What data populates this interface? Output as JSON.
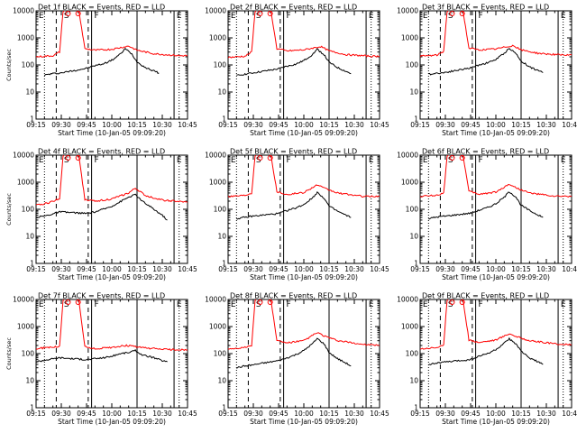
{
  "chart_data": [
    {
      "type": "line",
      "title": "Det 1f BLACK = Events, RED = LLD",
      "xlabel": "Start Time (10-Jan-05 09:09:20)",
      "ylabel": "Counts/sec",
      "yscale": "log",
      "ylim": [
        1,
        10000
      ],
      "xlim": [
        "09:15",
        "10:45"
      ],
      "x_ticks": [
        "09:15",
        "09:30",
        "09:45",
        "10:00",
        "10:15",
        "10:30",
        "10:45"
      ],
      "y_ticks": [
        "1",
        "10",
        "100",
        "1000",
        "10000"
      ],
      "markers": [
        "E",
        "S",
        "F",
        "E"
      ],
      "red_level": "high",
      "series": [
        {
          "name": "Events",
          "color": "#000000",
          "x": [
            "09:20",
            "09:25",
            "09:29",
            "09:45",
            "09:50",
            "09:55",
            "10:00",
            "10:05",
            "10:08",
            "10:12",
            "10:15",
            "10:20",
            "10:25",
            "10:28"
          ],
          "y": [
            42,
            48,
            50,
            75,
            95,
            110,
            150,
            250,
            400,
            250,
            130,
            80,
            60,
            50
          ]
        },
        {
          "name": "LLD",
          "color": "#ff0000",
          "x": [
            "09:15",
            "09:25",
            "09:29",
            "09:31",
            "09:34",
            "09:40",
            "09:44",
            "09:50",
            "10:00",
            "10:10",
            "10:15",
            "10:25",
            "10:40",
            "10:45"
          ],
          "y": [
            200,
            220,
            300,
            9000,
            15000,
            15000,
            400,
            350,
            380,
            500,
            350,
            260,
            220,
            220
          ]
        }
      ]
    },
    {
      "type": "line",
      "title": "Det 2f BLACK = Events, RED = LLD",
      "xlabel": "Start Time (10-Jan-05 09:09:20)",
      "ylabel": "",
      "yscale": "log",
      "ylim": [
        1,
        10000
      ],
      "xlim": [
        "09:15",
        "10:45"
      ],
      "x_ticks": [
        "09:15",
        "09:30",
        "09:45",
        "10:00",
        "10:15",
        "10:30",
        "10:45"
      ],
      "y_ticks": [
        "1",
        "10",
        "100",
        "1000",
        "10000"
      ],
      "markers": [
        "E",
        "S",
        "F",
        "E"
      ],
      "red_level": "high",
      "series": [
        {
          "name": "Events",
          "color": "#000000",
          "x": [
            "09:20",
            "09:25",
            "09:29",
            "09:45",
            "09:50",
            "09:55",
            "10:00",
            "10:05",
            "10:08",
            "10:12",
            "10:15",
            "10:20",
            "10:25",
            "10:28"
          ],
          "y": [
            40,
            46,
            50,
            72,
            90,
            105,
            145,
            240,
            380,
            240,
            125,
            80,
            58,
            48
          ]
        },
        {
          "name": "LLD",
          "color": "#ff0000",
          "x": [
            "09:15",
            "09:25",
            "09:29",
            "09:31",
            "09:34",
            "09:40",
            "09:44",
            "09:50",
            "10:00",
            "10:10",
            "10:15",
            "10:25",
            "10:40",
            "10:45"
          ],
          "y": [
            190,
            210,
            300,
            9000,
            15000,
            15000,
            400,
            330,
            360,
            480,
            330,
            240,
            210,
            210
          ]
        }
      ]
    },
    {
      "type": "line",
      "title": "Det 3f BLACK = Events, RED = LLD",
      "xlabel": "Start Time (10-Jan-05 09:09:20)",
      "ylabel": "",
      "yscale": "log",
      "ylim": [
        1,
        10000
      ],
      "xlim": [
        "09:15",
        "10:45"
      ],
      "x_ticks": [
        "09:15",
        "09:30",
        "09:45",
        "10:00",
        "10:15",
        "10:30",
        "10:45"
      ],
      "y_ticks": [
        "1",
        "10",
        "100",
        "1000",
        "10000"
      ],
      "markers": [
        "E",
        "S",
        "F",
        "E"
      ],
      "red_level": "high",
      "series": [
        {
          "name": "Events",
          "color": "#000000",
          "x": [
            "09:20",
            "09:25",
            "09:29",
            "09:45",
            "09:50",
            "09:55",
            "10:00",
            "10:05",
            "10:08",
            "10:12",
            "10:15",
            "10:20",
            "10:25",
            "10:28"
          ],
          "y": [
            45,
            50,
            52,
            78,
            100,
            120,
            160,
            270,
            420,
            260,
            140,
            85,
            62,
            52
          ]
        },
        {
          "name": "LLD",
          "color": "#ff0000",
          "x": [
            "09:15",
            "09:25",
            "09:29",
            "09:31",
            "09:34",
            "09:40",
            "09:44",
            "09:50",
            "10:00",
            "10:10",
            "10:15",
            "10:25",
            "10:40",
            "10:45"
          ],
          "y": [
            210,
            230,
            320,
            9000,
            15000,
            15000,
            420,
            360,
            390,
            520,
            360,
            270,
            230,
            230
          ]
        }
      ]
    },
    {
      "type": "line",
      "title": "Det 4f BLACK = Events, RED = LLD",
      "xlabel": "Start Time (10-Jan-05 09:09:20)",
      "ylabel": "Counts/sec",
      "yscale": "log",
      "ylim": [
        1,
        10000
      ],
      "xlim": [
        "09:15",
        "10:45"
      ],
      "x_ticks": [
        "09:15",
        "09:30",
        "09:45",
        "10:00",
        "10:15",
        "10:30",
        "10:45"
      ],
      "y_ticks": [
        "1",
        "10",
        "100",
        "1000",
        "10000"
      ],
      "markers": [
        "E",
        "S",
        "F",
        "E"
      ],
      "red_level": "high",
      "series": [
        {
          "name": "Events",
          "color": "#000000",
          "x": [
            "09:15",
            "09:22",
            "09:29",
            "09:45",
            "09:50",
            "09:55",
            "10:00",
            "10:05",
            "10:10",
            "10:14",
            "10:18",
            "10:25",
            "10:30",
            "10:33"
          ],
          "y": [
            50,
            60,
            80,
            70,
            80,
            100,
            130,
            190,
            280,
            350,
            200,
            100,
            60,
            40
          ]
        },
        {
          "name": "LLD",
          "color": "#ff0000",
          "x": [
            "09:15",
            "09:22",
            "09:29",
            "09:31",
            "09:34",
            "09:40",
            "09:44",
            "09:50",
            "10:00",
            "10:10",
            "10:14",
            "10:20",
            "10:30",
            "10:45"
          ],
          "y": [
            140,
            170,
            250,
            9000,
            15000,
            15000,
            230,
            200,
            240,
            400,
            600,
            320,
            220,
            180
          ]
        }
      ]
    },
    {
      "type": "line",
      "title": "Det 5f BLACK = Events, RED = LLD",
      "xlabel": "Start Time (10-Jan-05 09:09:20)",
      "ylabel": "",
      "yscale": "log",
      "ylim": [
        1,
        10000
      ],
      "xlim": [
        "09:15",
        "10:45"
      ],
      "x_ticks": [
        "09:15",
        "09:30",
        "09:45",
        "10:00",
        "10:15",
        "10:30",
        "10:45"
      ],
      "y_ticks": [
        "1",
        "10",
        "100",
        "1000",
        "10000"
      ],
      "markers": [
        "E",
        "S",
        "F",
        "E"
      ],
      "red_level": "high",
      "series": [
        {
          "name": "Events",
          "color": "#000000",
          "x": [
            "09:20",
            "09:25",
            "09:29",
            "09:45",
            "09:50",
            "09:55",
            "10:00",
            "10:05",
            "10:08",
            "10:12",
            "10:15",
            "10:20",
            "10:25",
            "10:28"
          ],
          "y": [
            45,
            50,
            55,
            70,
            90,
            110,
            150,
            260,
            420,
            260,
            130,
            85,
            60,
            50
          ]
        },
        {
          "name": "LLD",
          "color": "#ff0000",
          "x": [
            "09:15",
            "09:25",
            "09:29",
            "09:31",
            "09:34",
            "09:40",
            "09:44",
            "09:50",
            "10:00",
            "10:08",
            "10:12",
            "10:20",
            "10:35",
            "10:45"
          ],
          "y": [
            300,
            330,
            400,
            9000,
            15000,
            15000,
            450,
            350,
            420,
            800,
            600,
            400,
            300,
            300
          ]
        }
      ]
    },
    {
      "type": "line",
      "title": "Det 6f BLACK = Events, RED = LLD",
      "xlabel": "Start Time (10-Jan-05 09:09:20)",
      "ylabel": "",
      "yscale": "log",
      "ylim": [
        1,
        10000
      ],
      "xlim": [
        "09:15",
        "10:45"
      ],
      "x_ticks": [
        "09:15",
        "09:30",
        "09:45",
        "10:00",
        "10:15",
        "10:30",
        "10:45"
      ],
      "y_ticks": [
        "1",
        "10",
        "100",
        "1000",
        "10000"
      ],
      "markers": [
        "E",
        "S",
        "F",
        "E"
      ],
      "red_level": "high",
      "series": [
        {
          "name": "Events",
          "color": "#000000",
          "x": [
            "09:20",
            "09:25",
            "09:29",
            "09:45",
            "09:50",
            "09:55",
            "10:00",
            "10:05",
            "10:08",
            "10:12",
            "10:15",
            "10:20",
            "10:25",
            "10:28"
          ],
          "y": [
            45,
            52,
            55,
            72,
            92,
            115,
            160,
            280,
            450,
            280,
            140,
            90,
            62,
            50
          ]
        },
        {
          "name": "LLD",
          "color": "#ff0000",
          "x": [
            "09:15",
            "09:25",
            "09:29",
            "09:31",
            "09:34",
            "09:40",
            "09:44",
            "09:50",
            "10:00",
            "10:08",
            "10:12",
            "10:20",
            "10:35",
            "10:45"
          ],
          "y": [
            300,
            330,
            400,
            9000,
            15000,
            15000,
            460,
            360,
            430,
            850,
            620,
            400,
            300,
            300
          ]
        }
      ]
    },
    {
      "type": "line",
      "title": "Det 7f BLACK = Events, RED = LLD",
      "xlabel": "Start Time (10-Jan-05 09:09:20)",
      "ylabel": "Counts/sec",
      "yscale": "log",
      "ylim": [
        1,
        10000
      ],
      "xlim": [
        "09:15",
        "10:45"
      ],
      "x_ticks": [
        "09:15",
        "09:30",
        "09:45",
        "10:00",
        "10:15",
        "10:30",
        "10:45"
      ],
      "y_ticks": [
        "1",
        "10",
        "100",
        "1000",
        "10000"
      ],
      "markers": [
        "E",
        "S",
        "F",
        "E"
      ],
      "red_level": "low",
      "series": [
        {
          "name": "Events",
          "color": "#000000",
          "x": [
            "09:15",
            "09:22",
            "09:29",
            "09:45",
            "09:50",
            "09:55",
            "10:00",
            "10:05",
            "10:10",
            "10:14",
            "10:18",
            "10:25",
            "10:30",
            "10:33"
          ],
          "y": [
            50,
            60,
            70,
            60,
            65,
            70,
            80,
            100,
            110,
            130,
            90,
            70,
            55,
            50
          ]
        },
        {
          "name": "LLD",
          "color": "#ff0000",
          "x": [
            "09:15",
            "09:22",
            "09:29",
            "09:31",
            "09:34",
            "09:40",
            "09:44",
            "09:50",
            "10:00",
            "10:08",
            "10:12",
            "10:20",
            "10:35",
            "10:45"
          ],
          "y": [
            150,
            170,
            180,
            9000,
            15000,
            15000,
            180,
            150,
            170,
            200,
            190,
            160,
            140,
            140
          ]
        }
      ]
    },
    {
      "type": "line",
      "title": "Det 8f BLACK = Events, RED = LLD",
      "xlabel": "Start Time (10-Jan-05 09:09:20)",
      "ylabel": "",
      "yscale": "log",
      "ylim": [
        1,
        10000
      ],
      "xlim": [
        "09:15",
        "10:45"
      ],
      "x_ticks": [
        "09:15",
        "09:30",
        "09:45",
        "10:00",
        "10:15",
        "10:30",
        "10:45"
      ],
      "y_ticks": [
        "1",
        "10",
        "100",
        "1000",
        "10000"
      ],
      "markers": [
        "E",
        "S",
        "F",
        "E"
      ],
      "red_level": "high",
      "series": [
        {
          "name": "Events",
          "color": "#000000",
          "x": [
            "09:20",
            "09:25",
            "09:29",
            "09:45",
            "09:50",
            "09:55",
            "10:00",
            "10:05",
            "10:08",
            "10:12",
            "10:15",
            "10:20",
            "10:25",
            "10:28"
          ],
          "y": [
            30,
            35,
            38,
            55,
            70,
            90,
            130,
            230,
            360,
            230,
            110,
            65,
            45,
            35
          ]
        },
        {
          "name": "LLD",
          "color": "#ff0000",
          "x": [
            "09:15",
            "09:25",
            "09:29",
            "09:31",
            "09:34",
            "09:40",
            "09:44",
            "09:50",
            "10:00",
            "10:08",
            "10:12",
            "10:20",
            "10:35",
            "10:45"
          ],
          "y": [
            150,
            170,
            200,
            9000,
            15000,
            15000,
            300,
            250,
            300,
            600,
            450,
            300,
            220,
            200
          ]
        }
      ]
    },
    {
      "type": "line",
      "title": "Det 9f BLACK = Events, RED = LLD",
      "xlabel": "Start Time (10-Jan-05 09:09:20)",
      "ylabel": "",
      "yscale": "log",
      "ylim": [
        1,
        10000
      ],
      "xlim": [
        "09:15",
        "10:45"
      ],
      "x_ticks": [
        "09:15",
        "09:30",
        "09:45",
        "10:00",
        "10:15",
        "10:30",
        "10:45"
      ],
      "y_ticks": [
        "1",
        "10",
        "100",
        "1000",
        "10000"
      ],
      "markers": [
        "E",
        "S",
        "F",
        "E"
      ],
      "red_level": "high",
      "series": [
        {
          "name": "Events",
          "color": "#000000",
          "x": [
            "09:20",
            "09:25",
            "09:29",
            "09:45",
            "09:50",
            "09:55",
            "10:00",
            "10:05",
            "10:08",
            "10:12",
            "10:15",
            "10:20",
            "10:25",
            "10:28"
          ],
          "y": [
            40,
            45,
            48,
            60,
            80,
            100,
            140,
            240,
            350,
            230,
            120,
            70,
            50,
            40
          ]
        },
        {
          "name": "LLD",
          "color": "#ff0000",
          "x": [
            "09:15",
            "09:25",
            "09:29",
            "09:31",
            "09:34",
            "09:40",
            "09:44",
            "09:50",
            "10:00",
            "10:08",
            "10:12",
            "10:20",
            "10:35",
            "10:45"
          ],
          "y": [
            150,
            170,
            200,
            9000,
            15000,
            15000,
            320,
            260,
            320,
            550,
            430,
            300,
            230,
            210
          ]
        }
      ]
    }
  ],
  "vlines": {
    "dotted": [
      "09:15",
      "09:20",
      "10:45",
      "10:40"
    ],
    "dashed": [
      "09:27",
      "09:46"
    ],
    "solid": [
      "09:48",
      "10:15",
      "10:37"
    ]
  }
}
